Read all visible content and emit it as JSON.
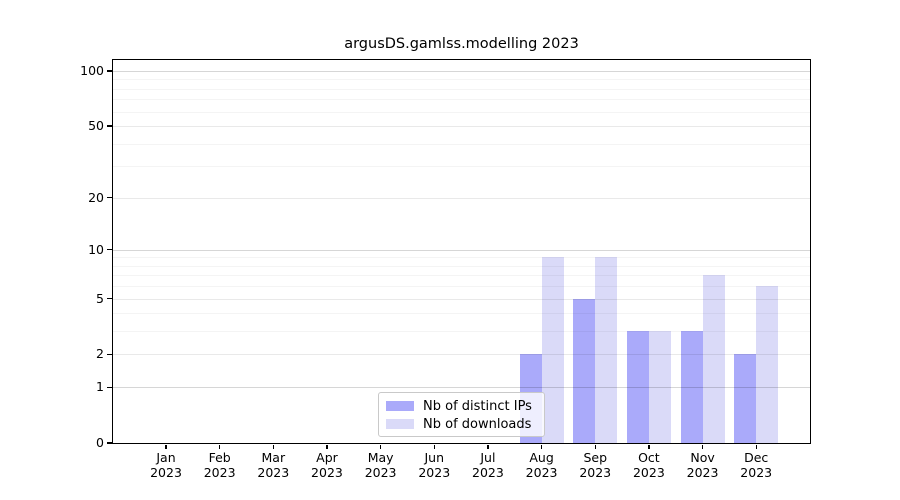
{
  "chart_data": {
    "type": "bar",
    "title": "argusDS.gamlss.modelling 2023",
    "categories": [
      "Jan",
      "Feb",
      "Mar",
      "Apr",
      "May",
      "Jun",
      "Jul",
      "Aug",
      "Sep",
      "Oct",
      "Nov",
      "Dec"
    ],
    "x_year": "2023",
    "series": [
      {
        "name": "Nb of distinct IPs",
        "color": "#aaaafa",
        "values": [
          0,
          0,
          0,
          0,
          0,
          0,
          0,
          2,
          5,
          3,
          3,
          2
        ]
      },
      {
        "name": "Nb of downloads",
        "color": "#dadaf8",
        "values": [
          0,
          0,
          0,
          0,
          0,
          0,
          0,
          9,
          9,
          3,
          7,
          6
        ]
      }
    ],
    "yscale": "log1p",
    "ylim": [
      0,
      115
    ],
    "yticks": [
      0,
      1,
      2,
      5,
      10,
      20,
      50,
      100
    ],
    "minor_gridlines": [
      3,
      4,
      6,
      7,
      8,
      9,
      30,
      40,
      60,
      70,
      80,
      90
    ],
    "grid": "on",
    "legend_position": "lower center"
  }
}
